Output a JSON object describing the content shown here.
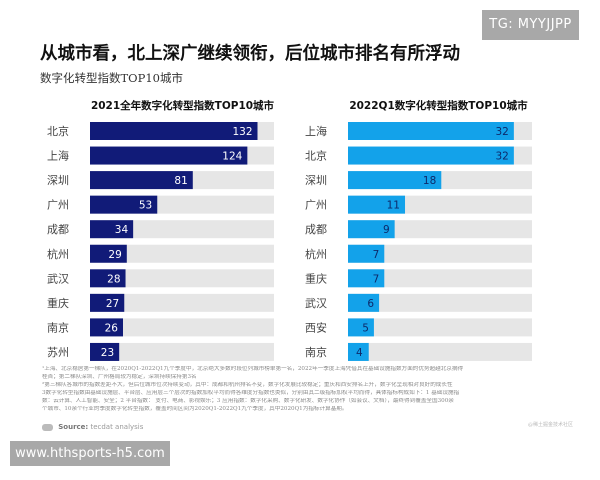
{
  "watermark_badge": "TG: MYYJJPP",
  "header": {
    "title": "从城市看，北上深广继续领衔，后位城市排名有所浮动",
    "subtitle": "数字化转型指数TOP10城市"
  },
  "colors": {
    "left_bar": "#111b78",
    "right_bar": "#13a2ea",
    "track": "#e6e6e6",
    "left_label": "#ffffff",
    "right_label": "#0d2a6b"
  },
  "chart_data": [
    {
      "type": "bar",
      "orientation": "horizontal",
      "title": "2021全年数字化转型指数TOP10城市",
      "categories": [
        "北京",
        "上海",
        "深圳",
        "广州",
        "成都",
        "杭州",
        "武汉",
        "重庆",
        "南京",
        "苏州"
      ],
      "values": [
        132,
        124,
        81,
        53,
        34,
        29,
        28,
        27,
        26,
        23
      ],
      "xlim": [
        0,
        145
      ],
      "data_labels": true,
      "xlabel": "",
      "ylabel": ""
    },
    {
      "type": "bar",
      "orientation": "horizontal",
      "title": "2022Q1数字化转型指数TOP10城市",
      "categories": [
        "上海",
        "北京",
        "深圳",
        "广州",
        "成都",
        "杭州",
        "重庆",
        "武汉",
        "西安",
        "南京"
      ],
      "values": [
        32,
        32,
        18,
        11,
        9,
        7,
        7,
        6,
        5,
        4
      ],
      "xlim": [
        0,
        35.5
      ],
      "data_labels": true,
      "xlabel": "",
      "ylabel": ""
    }
  ],
  "footnotes": [
    "¹上海、北京稳居第一梯队，在2020Q1-2022Q1九个季度中，北京绝大多数时段位列城市榜单第一名，2022年一季度上海凭借其在基础设施指数方面的优势超越北京摘得",
    "桂首；第二梯队深圳、广州格局较为稳定，深圳持续保持第3名",
    "²第三梯队各城市的指数差距不大，但后位城市位次持续变动，其中：成都和杭州排名不变，数字化发展比较稳定；重庆和西安排名上升，数字化呈现相对良好的成长性",
    "3数字化转型指数由基础设施层、平台层、应用层三个层次的指数加权平均而得各维度分指数也类似，分别由其二级指标加权平均而得，具体指标构成如下：1 基础设施指",
    "数：云计算、人工智能、安全；2 平台指数： 支付、电商、影视娱乐；3 应用指数：数字化采购、数字化研发、数字化协作（如会议、文档），最终得到覆盖全国300余",
    "个城市、10余个行业的季度数字化转型指数，覆盖时间区间为2020Q1-2022Q1九个季度，其中2020Q1为指标计算基期。"
  ],
  "source": {
    "label": "Source:",
    "text": "tecdat analysis"
  },
  "credit_watermark": "@稀土掘金技术社区",
  "site_watermark": "www.hthsports-h5.com"
}
